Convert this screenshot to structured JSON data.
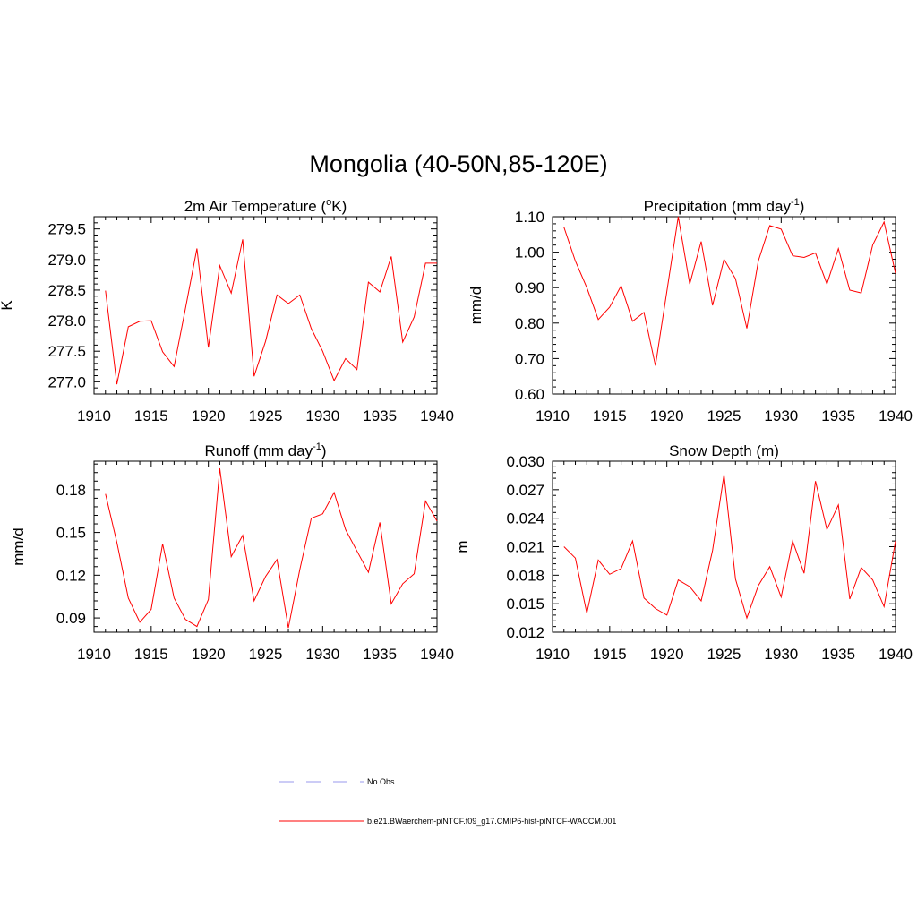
{
  "title": "Mongolia (40-50N,85-120E)",
  "legend": {
    "entries": [
      {
        "label": "No Obs",
        "color": "#9999ee",
        "style": "dashed"
      },
      {
        "label": "b.e21.BWaerchem-piNTCF.f09_g17.CMIP6-hist-piNTCF-WACCM.001",
        "color": "#ff0000",
        "style": "solid"
      }
    ]
  },
  "chart_data": [
    {
      "type": "line",
      "title": "2m Air Temperature (°K)",
      "title_parts": {
        "pre": "2m Air Temperature (",
        "sup": "o",
        "post": "K)"
      },
      "ylabel": "K",
      "xlim": [
        1910,
        1940
      ],
      "ylim": [
        276.8,
        279.7
      ],
      "x_ticks": [
        1910,
        1915,
        1920,
        1925,
        1930,
        1935,
        1940
      ],
      "y_ticks": [
        "277.0",
        "277.5",
        "278.0",
        "278.5",
        "279.0",
        "279.5"
      ],
      "x": [
        1911,
        1912,
        1913,
        1914,
        1915,
        1916,
        1917,
        1918,
        1919,
        1920,
        1921,
        1922,
        1923,
        1924,
        1925,
        1926,
        1927,
        1928,
        1929,
        1930,
        1931,
        1932,
        1933,
        1934,
        1935,
        1936,
        1937,
        1938,
        1939,
        1940
      ],
      "series": [
        {
          "color": "#ff0000",
          "values": [
            278.49,
            276.96,
            277.9,
            277.99,
            278.0,
            277.49,
            277.25,
            278.2,
            279.18,
            277.56,
            278.9,
            278.45,
            279.33,
            277.09,
            277.66,
            278.42,
            278.28,
            278.42,
            277.87,
            277.5,
            277.02,
            277.38,
            277.2,
            278.63,
            278.47,
            279.05,
            277.65,
            278.06,
            278.94,
            278.94
          ]
        }
      ]
    },
    {
      "type": "line",
      "title": "Precipitation (mm day-1)",
      "title_parts": {
        "pre": "Precipitation (mm day",
        "sup": "-1",
        "post": ")"
      },
      "ylabel": "mm/d",
      "xlim": [
        1910,
        1940
      ],
      "ylim": [
        0.6,
        1.1
      ],
      "x_ticks": [
        1910,
        1915,
        1920,
        1925,
        1930,
        1935,
        1940
      ],
      "y_ticks": [
        "0.60",
        "0.70",
        "0.80",
        "0.90",
        "1.00",
        "1.10"
      ],
      "x": [
        1911,
        1912,
        1913,
        1914,
        1915,
        1916,
        1917,
        1918,
        1919,
        1920,
        1921,
        1922,
        1923,
        1924,
        1925,
        1926,
        1927,
        1928,
        1929,
        1930,
        1931,
        1932,
        1933,
        1934,
        1935,
        1936,
        1937,
        1938,
        1939,
        1940
      ],
      "series": [
        {
          "color": "#ff0000",
          "values": [
            1.07,
            0.975,
            0.9,
            0.81,
            0.845,
            0.905,
            0.805,
            0.83,
            0.68,
            0.89,
            1.1,
            0.91,
            1.03,
            0.85,
            0.98,
            0.925,
            0.785,
            0.975,
            1.075,
            1.065,
            0.99,
            0.985,
            0.998,
            0.91,
            1.01,
            0.893,
            0.885,
            1.02,
            1.085,
            0.94
          ]
        }
      ]
    },
    {
      "type": "line",
      "title": "Runoff (mm day-1)",
      "title_parts": {
        "pre": "Runoff (mm day",
        "sup": "-1",
        "post": ")"
      },
      "ylabel": "mm/d",
      "xlim": [
        1910,
        1940
      ],
      "ylim": [
        0.08,
        0.2
      ],
      "x_ticks": [
        1910,
        1915,
        1920,
        1925,
        1930,
        1935,
        1940
      ],
      "y_ticks": [
        "0.09",
        "0.12",
        "0.15",
        "0.18"
      ],
      "x": [
        1911,
        1912,
        1913,
        1914,
        1915,
        1916,
        1917,
        1918,
        1919,
        1920,
        1921,
        1922,
        1923,
        1924,
        1925,
        1926,
        1927,
        1928,
        1929,
        1930,
        1931,
        1932,
        1933,
        1934,
        1935,
        1936,
        1937,
        1938,
        1939,
        1940
      ],
      "series": [
        {
          "color": "#ff0000",
          "values": [
            0.177,
            0.143,
            0.104,
            0.087,
            0.096,
            0.142,
            0.104,
            0.089,
            0.084,
            0.103,
            0.195,
            0.133,
            0.148,
            0.102,
            0.119,
            0.131,
            0.083,
            0.124,
            0.16,
            0.163,
            0.178,
            0.152,
            0.137,
            0.122,
            0.157,
            0.1,
            0.114,
            0.121,
            0.172,
            0.158
          ]
        }
      ]
    },
    {
      "type": "line",
      "title": "Snow Depth (m)",
      "title_parts": {
        "pre": "Snow Depth (m)",
        "sup": "",
        "post": ""
      },
      "ylabel": "m",
      "xlim": [
        1910,
        1940
      ],
      "ylim": [
        0.012,
        0.03
      ],
      "x_ticks": [
        1910,
        1915,
        1920,
        1925,
        1930,
        1935,
        1940
      ],
      "y_ticks": [
        "0.012",
        "0.015",
        "0.018",
        "0.021",
        "0.024",
        "0.027",
        "0.030"
      ],
      "x": [
        1911,
        1912,
        1913,
        1914,
        1915,
        1916,
        1917,
        1918,
        1919,
        1920,
        1921,
        1922,
        1923,
        1924,
        1925,
        1926,
        1927,
        1928,
        1929,
        1930,
        1931,
        1932,
        1933,
        1934,
        1935,
        1936,
        1937,
        1938,
        1939,
        1940
      ],
      "series": [
        {
          "color": "#ff0000",
          "values": [
            0.021,
            0.0198,
            0.014,
            0.0196,
            0.0181,
            0.0187,
            0.0216,
            0.0156,
            0.0145,
            0.0138,
            0.0175,
            0.0168,
            0.0153,
            0.0206,
            0.0286,
            0.0176,
            0.0135,
            0.0169,
            0.0189,
            0.0157,
            0.0216,
            0.0182,
            0.0279,
            0.0228,
            0.0254,
            0.0155,
            0.0188,
            0.0175,
            0.0147,
            0.0216
          ]
        }
      ]
    }
  ]
}
